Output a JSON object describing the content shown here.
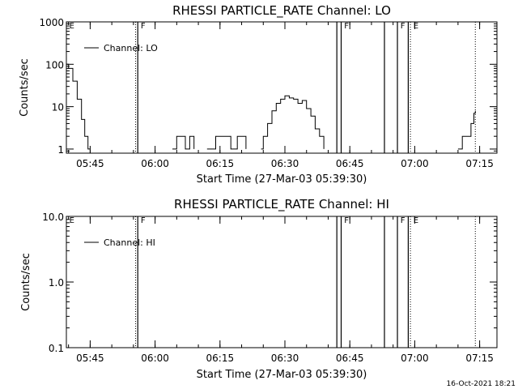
{
  "footer": {
    "date_stamp": "16-Oct-2021 18:21"
  },
  "chart_data": [
    {
      "type": "line",
      "title": "RHESSI PARTICLE_RATE Channel: LO",
      "xlabel": "Start Time (27-Mar-03 05:39:30)",
      "ylabel": "Counts/sec",
      "yscale": "log",
      "ylim": [
        0.8,
        1000
      ],
      "xlim": [
        "05:39:30",
        "07:19:00"
      ],
      "yticks": [
        "1",
        "10",
        "100",
        "1000"
      ],
      "xticks": [
        "05:45",
        "06:00",
        "06:15",
        "06:30",
        "06:45",
        "07:00",
        "07:15"
      ],
      "legend": {
        "placement": "top-left",
        "entries": [
          "Channel: LO"
        ]
      },
      "grid": false,
      "series": [
        {
          "name": "Channel: LO",
          "points": [
            [
              "05:39:30",
              100
            ],
            [
              "05:40:00",
              80
            ],
            [
              "05:41:00",
              40
            ],
            [
              "05:42:00",
              15
            ],
            [
              "05:43:00",
              5
            ],
            [
              "05:43:45",
              2
            ],
            [
              "05:44:30",
              1
            ],
            [
              "05:45:00",
              1
            ],
            [
              "05:46:00",
              null
            ],
            [
              "06:04:00",
              1
            ],
            [
              "06:05:00",
              2
            ],
            [
              "06:06:30",
              2
            ],
            [
              "06:07:00",
              1
            ],
            [
              "06:08:00",
              2
            ],
            [
              "06:09:00",
              1
            ],
            [
              "06:10:00",
              null
            ],
            [
              "06:12:00",
              1
            ],
            [
              "06:13:30",
              1
            ],
            [
              "06:14:00",
              2
            ],
            [
              "06:17:00",
              2
            ],
            [
              "06:17:30",
              1
            ],
            [
              "06:19:00",
              2
            ],
            [
              "06:20:30",
              2
            ],
            [
              "06:21:00",
              1
            ],
            [
              "06:22:00",
              null
            ],
            [
              "06:24:30",
              1
            ],
            [
              "06:25:00",
              2
            ],
            [
              "06:26:00",
              4
            ],
            [
              "06:27:00",
              8
            ],
            [
              "06:28:00",
              12
            ],
            [
              "06:29:00",
              15
            ],
            [
              "06:30:00",
              18
            ],
            [
              "06:31:00",
              16
            ],
            [
              "06:32:00",
              15
            ],
            [
              "06:33:00",
              12
            ],
            [
              "06:34:00",
              14
            ],
            [
              "06:35:00",
              9
            ],
            [
              "06:36:00",
              6
            ],
            [
              "06:37:00",
              3
            ],
            [
              "06:38:00",
              2
            ],
            [
              "06:39:00",
              1
            ],
            [
              "06:39:30",
              null
            ],
            [
              "07:10:00",
              1
            ],
            [
              "07:11:00",
              2
            ],
            [
              "07:12:30",
              2
            ],
            [
              "07:13:00",
              4
            ],
            [
              "07:13:40",
              7
            ],
            [
              "07:14:00",
              8
            ]
          ]
        }
      ]
    },
    {
      "type": "line",
      "title": "RHESSI PARTICLE_RATE Channel: HI",
      "xlabel": "Start Time (27-Mar-03 05:39:30)",
      "ylabel": "Counts/sec",
      "yscale": "log",
      "ylim": [
        0.1,
        10
      ],
      "xlim": [
        "05:39:30",
        "07:19:00"
      ],
      "yticks": [
        "0.1",
        "1.0",
        "10.0"
      ],
      "xticks": [
        "05:45",
        "06:00",
        "06:15",
        "06:30",
        "06:45",
        "07:00",
        "07:15"
      ],
      "legend": {
        "placement": "top-left",
        "entries": [
          "Channel: HI"
        ]
      },
      "grid": false,
      "series": [
        {
          "name": "Channel: HI",
          "points": []
        }
      ]
    }
  ],
  "markers": {
    "solid_lines": [
      "05:56:00",
      "06:42:00",
      "06:43:00",
      "06:53:00",
      "06:56:00",
      "06:58:30"
    ],
    "dotted_lines": [
      "05:55:30",
      "06:59:00",
      "07:14:00"
    ],
    "labels": [
      {
        "time": "05:40:00",
        "text": "E"
      },
      {
        "time": "05:56:30",
        "text": "F"
      },
      {
        "time": "06:43:30",
        "text": "F"
      },
      {
        "time": "06:56:30",
        "text": "F"
      },
      {
        "time": "06:59:30",
        "text": "E"
      }
    ]
  }
}
